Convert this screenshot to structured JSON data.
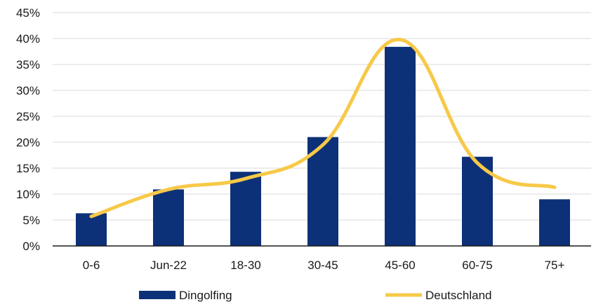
{
  "chart_data": {
    "type": "bar",
    "categories": [
      "0-6",
      "Jun-22",
      "18-30",
      "30-45",
      "45-60",
      "60-75",
      "75+"
    ],
    "series": [
      {
        "name": "Dingolfing",
        "type": "bar",
        "color": "#0d3178",
        "values": [
          6.3,
          10.9,
          14.3,
          21.0,
          38.4,
          17.2,
          9.0
        ]
      },
      {
        "name": "Deutschland",
        "type": "line",
        "smooth": true,
        "color": "#f7c948",
        "values": [
          5.7,
          10.9,
          13.0,
          19.5,
          39.8,
          16.0,
          11.3
        ]
      }
    ],
    "ylim": [
      0,
      45
    ],
    "yticks": [
      0,
      5,
      10,
      15,
      20,
      25,
      30,
      35,
      40,
      45
    ],
    "ytick_labels": [
      "0%",
      "5%",
      "10%",
      "15%",
      "20%",
      "25%",
      "30%",
      "35%",
      "40%",
      "45%"
    ],
    "grid": true,
    "legend": "bottom",
    "title": "",
    "xlabel": "",
    "ylabel": ""
  }
}
